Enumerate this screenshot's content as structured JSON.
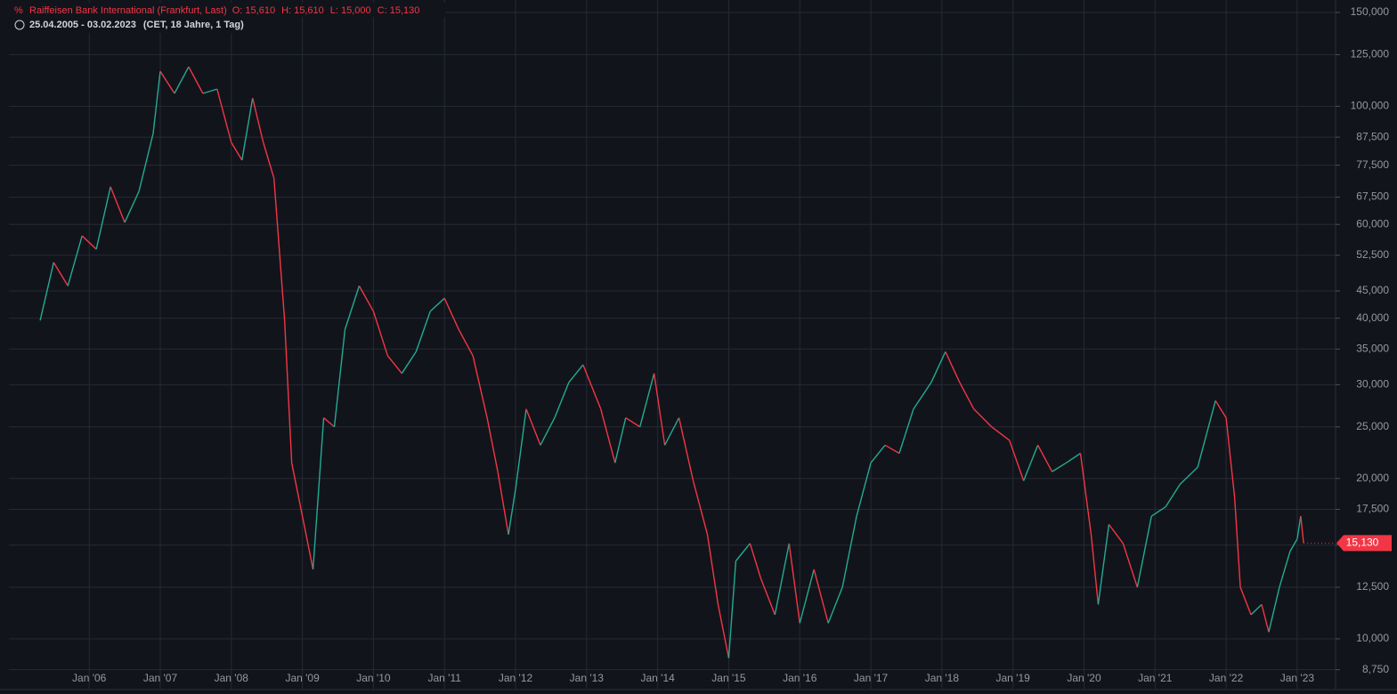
{
  "chart_data": {
    "type": "line",
    "title": "Raiffeisen Bank International (Frankfurt, Last)",
    "info": [
      "O: 15,610",
      "H: 15,610",
      "L: 15,000",
      "C: 15,130"
    ],
    "subtitle": "25.04.2005 - 03.02.2023",
    "subtitle_note": "(CET, 18 Jahre, 1 Tag)",
    "log_scale": true,
    "grid": true,
    "up_color": "#22ab94",
    "down_color": "#f23645",
    "x": [
      2005.31,
      2005.5,
      2005.7,
      2005.9,
      2006.1,
      2006.3,
      2006.5,
      2006.7,
      2006.9,
      2007.0,
      2007.2,
      2007.4,
      2007.6,
      2007.8,
      2008.0,
      2008.15,
      2008.3,
      2008.45,
      2008.6,
      2008.75,
      2008.85,
      2009.0,
      2009.15,
      2009.3,
      2009.45,
      2009.6,
      2009.8,
      2010.0,
      2010.2,
      2010.4,
      2010.6,
      2010.8,
      2011.0,
      2011.2,
      2011.4,
      2011.6,
      2011.75,
      2011.9,
      2012.0,
      2012.15,
      2012.35,
      2012.55,
      2012.75,
      2012.95,
      2013.2,
      2013.4,
      2013.55,
      2013.75,
      2013.95,
      2014.1,
      2014.3,
      2014.5,
      2014.7,
      2014.85,
      2015.0,
      2015.1,
      2015.3,
      2015.45,
      2015.65,
      2015.85,
      2016.0,
      2016.2,
      2016.4,
      2016.6,
      2016.8,
      2017.0,
      2017.2,
      2017.4,
      2017.6,
      2017.85,
      2018.05,
      2018.25,
      2018.45,
      2018.7,
      2018.95,
      2019.15,
      2019.35,
      2019.55,
      2019.75,
      2019.95,
      2020.1,
      2020.2,
      2020.35,
      2020.55,
      2020.75,
      2020.95,
      2021.15,
      2021.35,
      2021.6,
      2021.85,
      2022.0,
      2022.12,
      2022.2,
      2022.35,
      2022.5,
      2022.6,
      2022.75,
      2022.9,
      2023.0,
      2023.05,
      2023.09
    ],
    "series": [
      {
        "name": "Raiffeisen Bank International",
        "values": [
          39600,
          50900,
          46000,
          57100,
          53900,
          70600,
          60500,
          69200,
          88900,
          116300,
          105700,
          118600,
          105700,
          107700,
          85500,
          79200,
          103600,
          85500,
          73300,
          39600,
          21400,
          17000,
          13500,
          26000,
          25000,
          38100,
          46000,
          41200,
          34000,
          31500,
          34600,
          41200,
          43600,
          38100,
          34000,
          26000,
          20600,
          15700,
          19100,
          27000,
          23100,
          26000,
          30300,
          32700,
          27000,
          21400,
          26000,
          25000,
          31500,
          23100,
          26000,
          19800,
          15700,
          11600,
          9200,
          14000,
          15100,
          13000,
          11100,
          15100,
          10700,
          13500,
          10700,
          12500,
          17000,
          21400,
          23100,
          22300,
          27000,
          30300,
          34600,
          30300,
          27000,
          25000,
          23600,
          19800,
          23100,
          20600,
          21400,
          22300,
          15700,
          11600,
          16400,
          15100,
          12500,
          17000,
          17700,
          19500,
          21000,
          28000,
          26000,
          18400,
          12500,
          11100,
          11600,
          10300,
          12500,
          14600,
          15400,
          17000,
          15130
        ]
      }
    ],
    "last_label": {
      "value": 15130,
      "label": "15,130"
    },
    "xlim": [
      2004.87,
      2023.54
    ],
    "xticks": [
      {
        "value": 2006,
        "label": "Jan '06"
      },
      {
        "value": 2007,
        "label": "Jan '07"
      },
      {
        "value": 2008,
        "label": "Jan '08"
      },
      {
        "value": 2009,
        "label": "Jan '09"
      },
      {
        "value": 2010,
        "label": "Jan '10"
      },
      {
        "value": 2011,
        "label": "Jan '11"
      },
      {
        "value": 2012,
        "label": "Jan '12"
      },
      {
        "value": 2013,
        "label": "Jan '13"
      },
      {
        "value": 2014,
        "label": "Jan '14"
      },
      {
        "value": 2015,
        "label": "Jan '15"
      },
      {
        "value": 2016,
        "label": "Jan '16"
      },
      {
        "value": 2017,
        "label": "Jan '17"
      },
      {
        "value": 2018,
        "label": "Jan '18"
      },
      {
        "value": 2019,
        "label": "Jan '19"
      },
      {
        "value": 2020,
        "label": "Jan '20"
      },
      {
        "value": 2021,
        "label": "Jan '21"
      },
      {
        "value": 2022,
        "label": "Jan '22"
      },
      {
        "value": 2023,
        "label": "Jan '23"
      }
    ],
    "ylim": [
      8030,
      158300
    ],
    "yticks": [
      {
        "value": 150000,
        "label": "150,000"
      },
      {
        "value": 125000,
        "label": "125,000"
      },
      {
        "value": 100000,
        "label": "100,000"
      },
      {
        "value": 87500,
        "label": "87,500"
      },
      {
        "value": 77500,
        "label": "77,500"
      },
      {
        "value": 67500,
        "label": "67,500"
      },
      {
        "value": 60000,
        "label": "60,000"
      },
      {
        "value": 52500,
        "label": "52,500"
      },
      {
        "value": 45000,
        "label": "45,000"
      },
      {
        "value": 40000,
        "label": "40,000"
      },
      {
        "value": 35000,
        "label": "35,000"
      },
      {
        "value": 30000,
        "label": "30,000"
      },
      {
        "value": 25000,
        "label": "25,000"
      },
      {
        "value": 20000,
        "label": "20,000"
      },
      {
        "value": 17500,
        "label": "17,500"
      },
      {
        "value": 15000,
        "label": "15,000"
      },
      {
        "value": 12500,
        "label": "12,500"
      },
      {
        "value": 10000,
        "label": "10,000"
      },
      {
        "value": 8750,
        "label": "8,750"
      }
    ]
  }
}
